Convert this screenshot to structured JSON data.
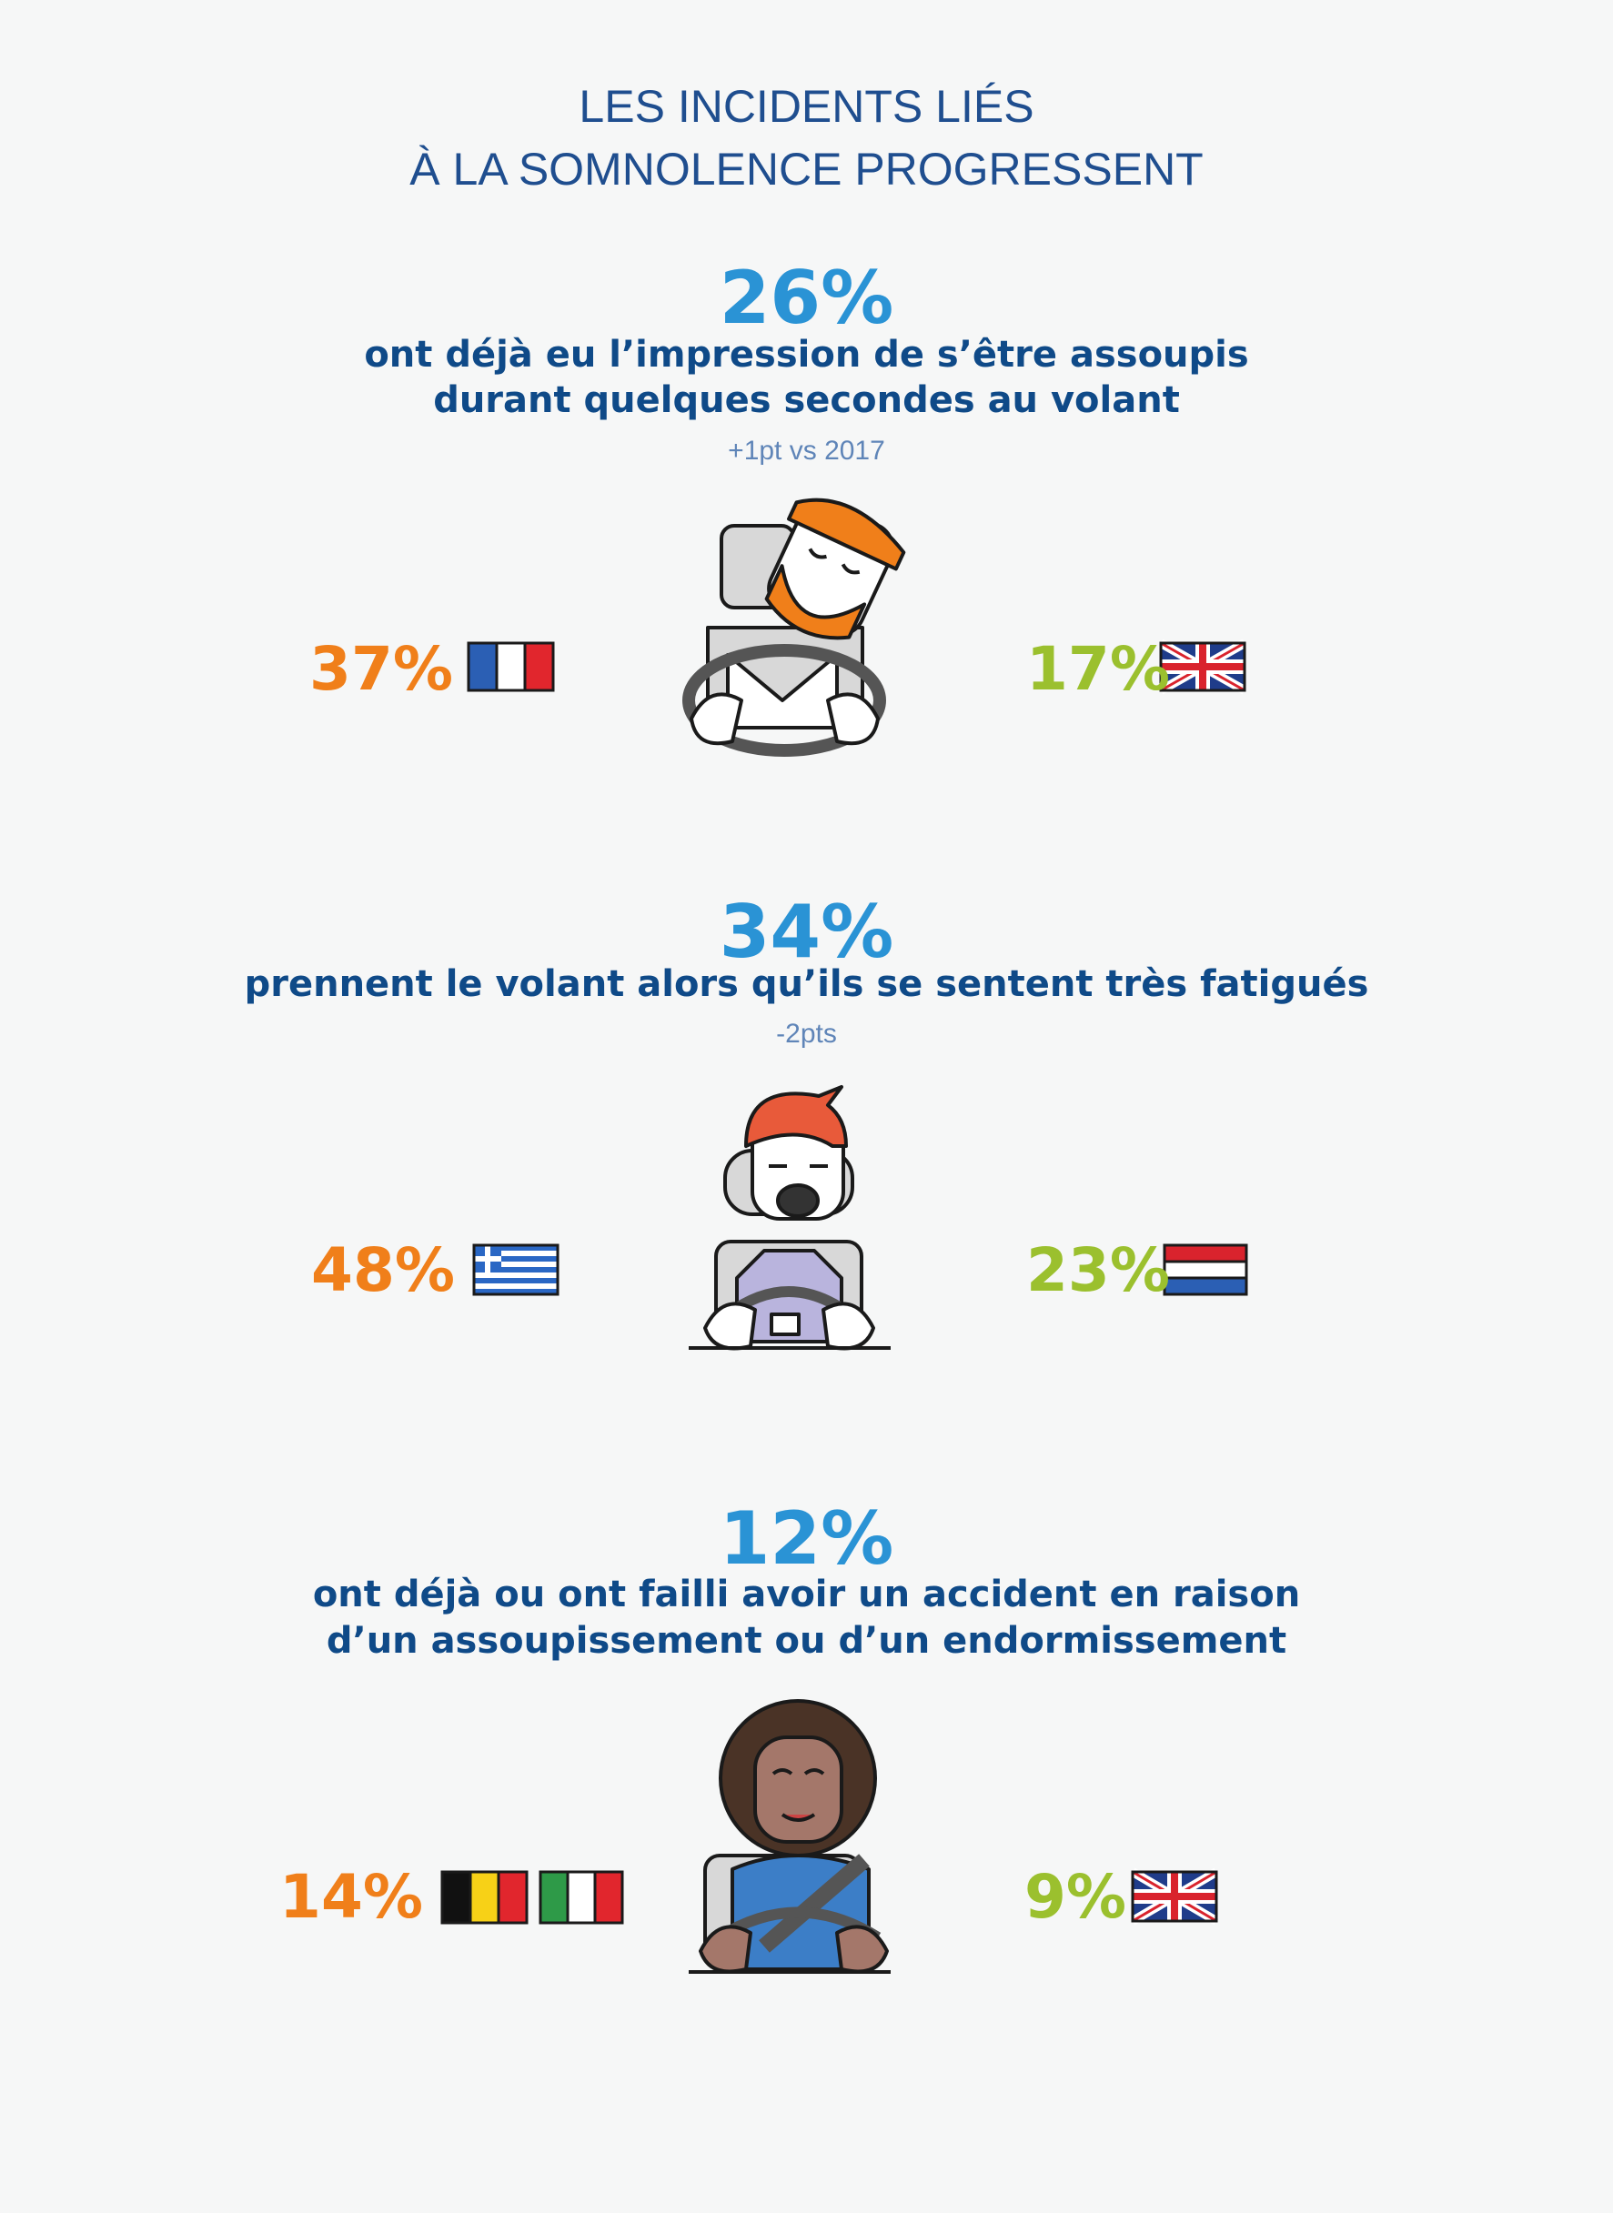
{
  "header": {
    "title_lines": [
      "LES INCIDENTS LIÉS",
      "À LA SOMNOLENCE PROGRESSENT"
    ]
  },
  "sections": [
    {
      "stat": "26%",
      "text_lines": [
        "ont déjà eu l’impression de s’être assoupis",
        "durant quelques secondes au volant"
      ],
      "note": "+1pt vs 2017",
      "left_value": "37%",
      "right_value": "17%"
    },
    {
      "stat": "34%",
      "text_lines": [
        "prennent le volant alors qu’ils se sentent très fatigués"
      ],
      "note": "-2pts",
      "left_value": "48%",
      "right_value": "23%"
    },
    {
      "stat": "12%",
      "text_lines": [
        "ont déjà ou ont failli avoir un accident en raison",
        "d’un assoupissement ou d’un endormissement"
      ],
      "left_value": "14%",
      "right_value": "9%"
    }
  ]
}
